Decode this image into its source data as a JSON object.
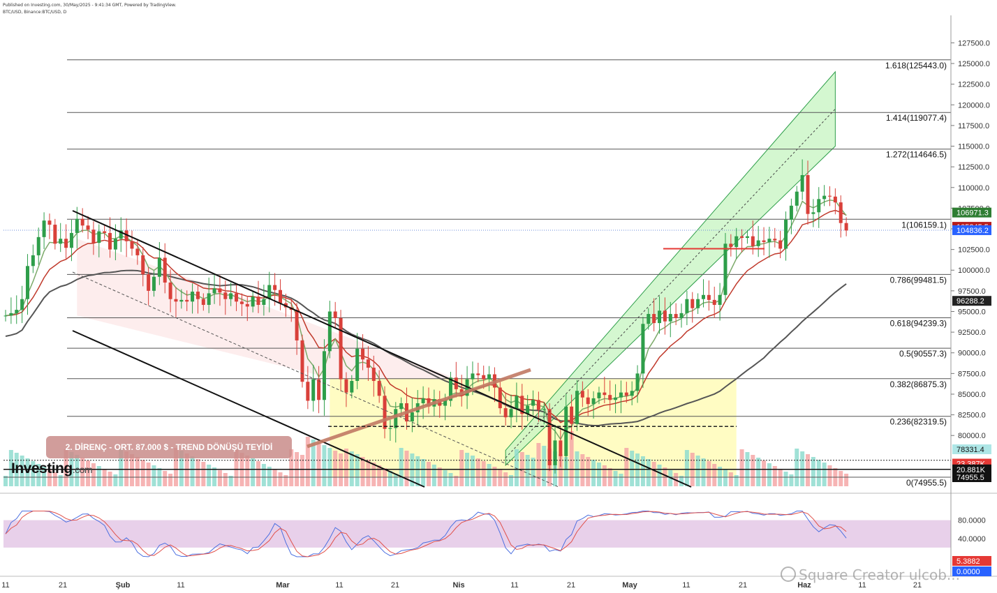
{
  "header": {
    "published": "Published on Investing.com, 30/May/2025 - 9:41:34 GMT, Powered by TradingView.",
    "symbol": "BTC/USD, Binance:BTC/USD, D"
  },
  "logo": {
    "main": "Investing",
    "suffix": ".com"
  },
  "watermark": "Square Creator ulcob...",
  "colors": {
    "up": "#2e9e4a",
    "down": "#d9403a",
    "fib_line": "#555555",
    "channel": "#90ee90",
    "zone": "#fffbb8",
    "price_axis_text": "#333333",
    "stoch_band": "#e6cbe8",
    "stoch_k": "#4b6fe0",
    "stoch_d": "#e0504a",
    "ema_short": "#7caa6a",
    "ema_mid": "#c0392b",
    "sma_long": "#555555"
  },
  "annotation": "2. DİRENÇ - ORT. 87.000 $ - TREND DÖNÜŞÜ TEYİDİ",
  "chart_data": {
    "type": "candlestick",
    "title": "",
    "xlabel": "",
    "ylabel": "",
    "ylim": [
      73500,
      129500
    ],
    "x_ticks": [
      "11",
      "21",
      "Şub",
      "11",
      "Mar",
      "11",
      "21",
      "Nis",
      "11",
      "21",
      "May",
      "11",
      "21",
      "Haz",
      "11",
      "21"
    ],
    "y_ticks": [
      "80000.0",
      "82500.0",
      "85000.0",
      "87500.0",
      "90000.0",
      "92500.0",
      "95000.0",
      "97500.0",
      "100000.0",
      "102500.0",
      "105000.0",
      "107500.0",
      "110000.0",
      "112500.0",
      "115000.0",
      "117500.0",
      "120000.0",
      "122500.0",
      "125000.0",
      "127500.0"
    ],
    "fib_levels": [
      {
        "label": "1.618(125443.0)",
        "value": 125443.0
      },
      {
        "label": "1.414(119077.4)",
        "value": 119077.4
      },
      {
        "label": "1.272(114646.5)",
        "value": 114646.5
      },
      {
        "label": "1(106159.1)",
        "value": 106159.1
      },
      {
        "label": "0.786(99481.5)",
        "value": 99481.5
      },
      {
        "label": "0.618(94239.3)",
        "value": 94239.3
      },
      {
        "label": "0.5(90557.3)",
        "value": 90557.3
      },
      {
        "label": "0.382(86875.3)",
        "value": 86875.3
      },
      {
        "label": "0.236(82319.5)",
        "value": 82319.5
      },
      {
        "label": "0(74955.5)",
        "value": 74955.5
      }
    ],
    "price_tags": [
      {
        "label": "106971.3",
        "value": 106971.3,
        "color": "#2e7d32"
      },
      {
        "label": "105245.5",
        "value": 105245.5,
        "color": "#b71c1c"
      },
      {
        "label": "104836.2",
        "value": 104836.2,
        "color": "#2962ff"
      },
      {
        "label": "96288.2",
        "value": 96288.2,
        "color": "#222222"
      },
      {
        "label": "78331.4",
        "value": 78331.4,
        "color": "#aee6e6"
      },
      {
        "label": "23.387K",
        "value": 76600,
        "color": "#e53935"
      },
      {
        "label": "20.881K",
        "value": 75900,
        "color": "#111111"
      },
      {
        "label": "74955.5",
        "value": 74955.5,
        "color": "#111111"
      }
    ],
    "close_series": [
      94500,
      94800,
      95200,
      96500,
      100500,
      101800,
      104000,
      106000,
      105500,
      103200,
      103800,
      102700,
      104500,
      106200,
      105400,
      104900,
      103300,
      104700,
      104500,
      102500,
      103800,
      104800,
      103500,
      102600,
      101800,
      99500,
      97500,
      99200,
      101500,
      98500,
      96500,
      96200,
      96400,
      96200,
      97400,
      96500,
      95800,
      97200,
      97800,
      97300,
      96500,
      97200,
      96200,
      95900,
      95600,
      96800,
      95800,
      96500,
      98200,
      97600,
      96000,
      95500,
      95200,
      91500,
      86500,
      84200,
      86800,
      84300,
      90200,
      95000,
      94200,
      86800,
      85200,
      86600,
      90500,
      89200,
      88200,
      86600,
      84800,
      80800,
      80900,
      83200,
      83900,
      81700,
      82800,
      83900,
      84500,
      83500,
      84400,
      83600,
      84200,
      87000,
      85600,
      84800,
      86800,
      87500,
      87300,
      86800,
      87400,
      85800,
      83300,
      82200,
      83200,
      84800,
      82600,
      83600,
      84300,
      83100,
      83200,
      76400,
      79400,
      77500,
      83500,
      81400,
      85400,
      84600,
      83800,
      84500,
      85200,
      84900,
      84300,
      84600,
      85200,
      84800,
      85400,
      87500,
      93500,
      94700,
      93600,
      95100,
      93800,
      94700,
      94200,
      94800,
      96500,
      95400,
      96500,
      97000,
      96400,
      95800,
      97000,
      103200,
      102800,
      104100,
      103900,
      104100,
      102900,
      103600,
      103400,
      103800,
      103600,
      102600,
      106100,
      107800,
      109500,
      111500,
      106800,
      107000,
      108600,
      109000,
      108900,
      108200,
      105700,
      104800
    ],
    "series": [
      {
        "name": "",
        "kind": "EMA short"
      },
      {
        "name": "",
        "kind": "EMA mid"
      },
      {
        "name": "",
        "kind": "SMA long"
      }
    ],
    "stochastic": {
      "ylim": [
        0,
        100
      ],
      "y_ticks": [
        "40.0000",
        "80.0000"
      ],
      "tags": [
        {
          "label": "5.3882",
          "value": 5.3882,
          "color": "#e53935"
        },
        {
          "label": "0.0000",
          "value": 0,
          "color": "#2962ff"
        }
      ]
    }
  }
}
